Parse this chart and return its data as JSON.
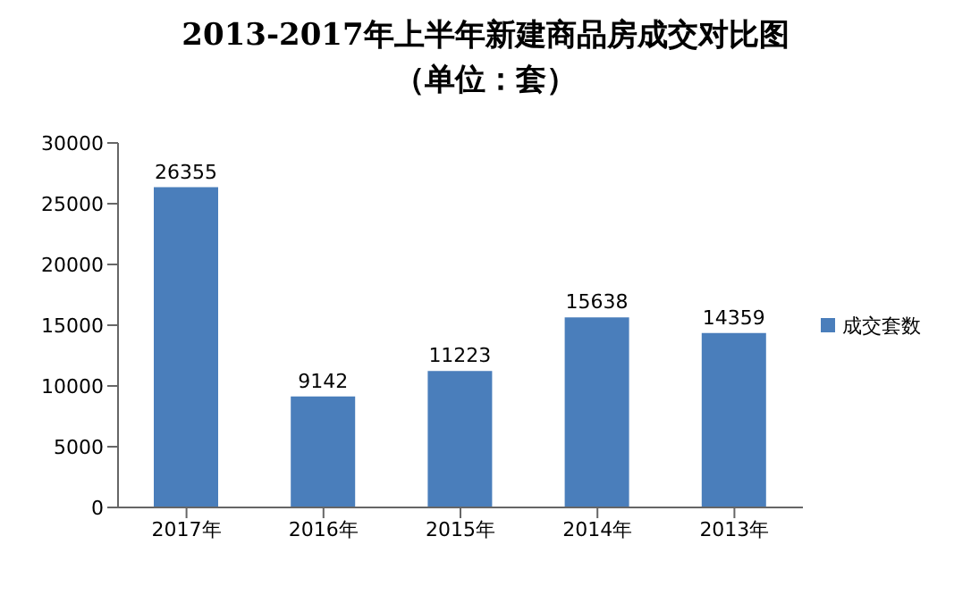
{
  "chart_data": {
    "type": "bar",
    "title": "2013-2017年上半年新建商品房成交对比图",
    "subtitle": "（单位：套）",
    "categories": [
      "2017年",
      "2016年",
      "2015年",
      "2014年",
      "2013年"
    ],
    "series": [
      {
        "name": "成交套数",
        "color": "#4a7ebb",
        "values": [
          26355,
          9142,
          11223,
          15638,
          14359
        ]
      }
    ],
    "ylim": [
      0,
      30000
    ],
    "yticks": [
      0,
      5000,
      10000,
      15000,
      20000,
      25000,
      30000
    ],
    "grid": false,
    "legend": "right",
    "data_labels": true
  }
}
